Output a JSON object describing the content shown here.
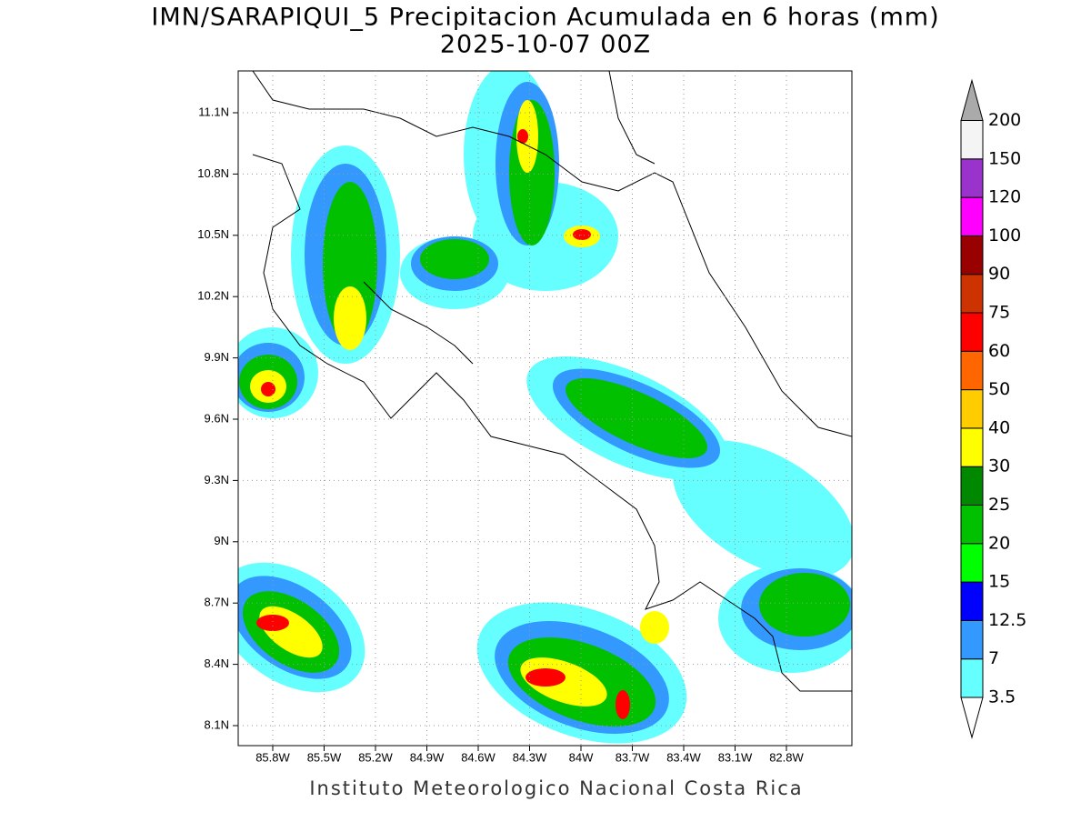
{
  "header": {
    "title": "IMN/SARAPIQUI_5 Precipitacion Acumulada en 6 horas (mm)",
    "subtitle": "2025-10-07 00Z"
  },
  "map": {
    "lat_labels": [
      "11.1N",
      "10.8N",
      "10.5N",
      "10.2N",
      "9.9N",
      "9.6N",
      "9.3N",
      "9N",
      "8.7N",
      "8.4N",
      "8.1N"
    ],
    "lon_labels": [
      "85.8W",
      "85.5W",
      "85.2W",
      "84.9W",
      "84.6W",
      "84.3W",
      "84W",
      "83.7W",
      "83.4W",
      "83.1W",
      "82.8W"
    ]
  },
  "colorbar": {
    "labels": [
      "3.5",
      "7",
      "12.5",
      "15",
      "20",
      "25",
      "30",
      "40",
      "50",
      "60",
      "75",
      "90",
      "100",
      "120",
      "150",
      "200"
    ],
    "colors": [
      "#66ffff",
      "#3399ff",
      "#0000ff",
      "#00ff00",
      "#00c000",
      "#008800",
      "#ffff00",
      "#ffcc00",
      "#ff6600",
      "#ff0000",
      "#cc3300",
      "#990000",
      "#ff00ff",
      "#9933cc",
      "#f4f4f4"
    ]
  },
  "footer": "Instituto Meteorologico Nacional Costa Rica"
}
